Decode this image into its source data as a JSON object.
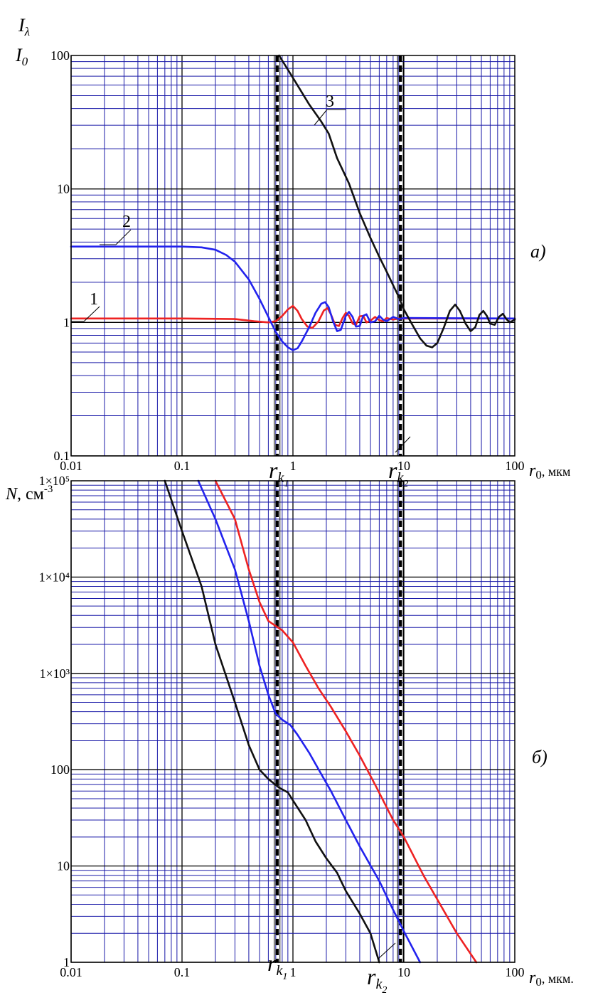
{
  "chart_data": [
    {
      "type": "line",
      "scale": "log-log",
      "panel_label": "а)",
      "ylabel": {
        "top": "I",
        "sub_top": "λ",
        "bottom": "I",
        "sub_bottom": "0"
      },
      "xlabel": {
        "main": "r",
        "sub": "0",
        "unit": ", мкм"
      },
      "xlim": [
        0.01,
        100
      ],
      "ylim": [
        0.1,
        100
      ],
      "x_ticks": [
        "0.01",
        "0.1",
        "1",
        "10",
        "100"
      ],
      "y_ticks": [
        "0.1",
        "1",
        "10",
        "100"
      ],
      "grid": true,
      "markers": [
        {
          "name": "r",
          "sub": "k",
          "subsub": "1",
          "x": 0.72
        },
        {
          "name": "r",
          "sub": "k",
          "subsub": "2",
          "x": 9.3
        }
      ],
      "series": [
        {
          "name": "1",
          "color": "#ee2222",
          "points": [
            [
              0.01,
              1.07
            ],
            [
              0.1,
              1.07
            ],
            [
              0.3,
              1.06
            ],
            [
              0.45,
              1.02
            ],
            [
              0.6,
              1.0
            ],
            [
              0.7,
              1.02
            ],
            [
              0.8,
              1.12
            ],
            [
              0.9,
              1.25
            ],
            [
              1.0,
              1.33
            ],
            [
              1.1,
              1.22
            ],
            [
              1.2,
              1.06
            ],
            [
              1.35,
              0.93
            ],
            [
              1.5,
              0.91
            ],
            [
              1.7,
              1.02
            ],
            [
              1.9,
              1.23
            ],
            [
              2.05,
              1.28
            ],
            [
              2.2,
              1.15
            ],
            [
              2.4,
              0.96
            ],
            [
              2.6,
              0.94
            ],
            [
              2.8,
              1.08
            ],
            [
              3.0,
              1.18
            ],
            [
              3.2,
              1.12
            ],
            [
              3.45,
              0.98
            ],
            [
              3.7,
              0.96
            ],
            [
              4.0,
              1.11
            ],
            [
              4.3,
              1.12
            ],
            [
              4.6,
              1.0
            ],
            [
              5.0,
              1.03
            ],
            [
              5.5,
              1.1
            ],
            [
              6.0,
              1.04
            ],
            [
              6.5,
              1.02
            ],
            [
              7.0,
              1.08
            ],
            [
              8.0,
              1.05
            ],
            [
              9.0,
              1.07
            ],
            [
              100,
              1.07
            ]
          ]
        },
        {
          "name": "2",
          "color": "#2222ee",
          "points": [
            [
              0.01,
              3.7
            ],
            [
              0.1,
              3.7
            ],
            [
              0.15,
              3.65
            ],
            [
              0.2,
              3.5
            ],
            [
              0.25,
              3.2
            ],
            [
              0.3,
              2.85
            ],
            [
              0.4,
              2.1
            ],
            [
              0.5,
              1.5
            ],
            [
              0.6,
              1.1
            ],
            [
              0.7,
              0.85
            ],
            [
              0.8,
              0.72
            ],
            [
              0.9,
              0.65
            ],
            [
              1.0,
              0.62
            ],
            [
              1.1,
              0.64
            ],
            [
              1.2,
              0.72
            ],
            [
              1.4,
              0.92
            ],
            [
              1.6,
              1.18
            ],
            [
              1.8,
              1.38
            ],
            [
              1.95,
              1.42
            ],
            [
              2.1,
              1.3
            ],
            [
              2.3,
              1.02
            ],
            [
              2.5,
              0.86
            ],
            [
              2.7,
              0.88
            ],
            [
              3.0,
              1.12
            ],
            [
              3.2,
              1.2
            ],
            [
              3.45,
              1.1
            ],
            [
              3.7,
              0.93
            ],
            [
              4.0,
              0.94
            ],
            [
              4.3,
              1.12
            ],
            [
              4.6,
              1.15
            ],
            [
              5.0,
              1.0
            ],
            [
              5.5,
              1.02
            ],
            [
              6.0,
              1.12
            ],
            [
              6.5,
              1.05
            ],
            [
              7.0,
              1.02
            ],
            [
              8.0,
              1.1
            ],
            [
              9.0,
              1.06
            ],
            [
              10,
              1.08
            ],
            [
              100,
              1.07
            ]
          ]
        },
        {
          "name": "3",
          "color": "#111111",
          "points": [
            [
              0.75,
              100
            ],
            [
              1.0,
              68
            ],
            [
              1.4,
              43
            ],
            [
              1.8,
              32
            ],
            [
              2.1,
              26
            ],
            [
              2.5,
              17
            ],
            [
              3.2,
              11
            ],
            [
              4.0,
              6.6
            ],
            [
              5.0,
              4.3
            ],
            [
              6.0,
              3.1
            ],
            [
              7.0,
              2.4
            ],
            [
              8.0,
              1.9
            ],
            [
              9.0,
              1.55
            ],
            [
              10,
              1.25
            ],
            [
              12,
              0.95
            ],
            [
              14,
              0.76
            ],
            [
              16,
              0.67
            ],
            [
              18,
              0.65
            ],
            [
              20,
              0.7
            ],
            [
              23,
              0.92
            ],
            [
              26,
              1.22
            ],
            [
              29,
              1.36
            ],
            [
              32,
              1.22
            ],
            [
              36,
              0.98
            ],
            [
              40,
              0.86
            ],
            [
              44,
              0.92
            ],
            [
              48,
              1.14
            ],
            [
              52,
              1.22
            ],
            [
              56,
              1.12
            ],
            [
              60,
              0.98
            ],
            [
              66,
              0.96
            ],
            [
              72,
              1.1
            ],
            [
              78,
              1.16
            ],
            [
              84,
              1.06
            ],
            [
              90,
              1.0
            ],
            [
              100,
              1.05
            ]
          ]
        }
      ]
    },
    {
      "type": "line",
      "scale": "log-log",
      "panel_label": "б)",
      "ylabel": {
        "main": "N",
        "unit": ", см",
        "sup": "-3"
      },
      "xlabel": {
        "main": "r",
        "sub": "0",
        "unit": ", мкм."
      },
      "xlim": [
        0.01,
        100
      ],
      "ylim": [
        1,
        100000
      ],
      "x_ticks": [
        "0.01",
        "0.1",
        "1",
        "10",
        "100"
      ],
      "y_ticks": [
        "1",
        "10",
        "100",
        "1×10³",
        "1×10⁴",
        "1×10⁵"
      ],
      "grid": true,
      "markers": [
        {
          "name": "r",
          "sub": "k",
          "subsub": "1",
          "x": 0.72
        },
        {
          "name": "r",
          "sub": "k",
          "subsub": "2",
          "x": 9.3
        }
      ],
      "series": [
        {
          "color": "#111111",
          "points": [
            [
              0.07,
              100000
            ],
            [
              0.1,
              30000
            ],
            [
              0.15,
              8000
            ],
            [
              0.2,
              2000
            ],
            [
              0.3,
              500
            ],
            [
              0.4,
              180
            ],
            [
              0.5,
              100
            ],
            [
              0.6,
              80
            ],
            [
              0.75,
              65
            ],
            [
              0.9,
              58
            ],
            [
              1.0,
              48
            ],
            [
              1.3,
              30
            ],
            [
              1.6,
              18
            ],
            [
              2.0,
              12
            ],
            [
              2.5,
              8.5
            ],
            [
              3.0,
              5.5
            ],
            [
              4.0,
              3.2
            ],
            [
              5.0,
              2.0
            ],
            [
              6.0,
              1.0
            ]
          ]
        },
        {
          "color": "#2222ee",
          "points": [
            [
              0.14,
              100000
            ],
            [
              0.2,
              40000
            ],
            [
              0.3,
              12000
            ],
            [
              0.4,
              3500
            ],
            [
              0.5,
              1200
            ],
            [
              0.6,
              600
            ],
            [
              0.7,
              380
            ],
            [
              0.8,
              330
            ],
            [
              0.95,
              290
            ],
            [
              1.1,
              230
            ],
            [
              1.4,
              150
            ],
            [
              1.8,
              90
            ],
            [
              2.2,
              60
            ],
            [
              3.0,
              30
            ],
            [
              4.0,
              16
            ],
            [
              6.0,
              7
            ],
            [
              8.0,
              3.5
            ],
            [
              10,
              2.1
            ],
            [
              14,
              1.0
            ]
          ]
        },
        {
          "color": "#ee2222",
          "points": [
            [
              0.2,
              100000
            ],
            [
              0.3,
              40000
            ],
            [
              0.4,
              12000
            ],
            [
              0.5,
              5500
            ],
            [
              0.6,
              3500
            ],
            [
              0.8,
              2800
            ],
            [
              1.0,
              2100
            ],
            [
              1.3,
              1200
            ],
            [
              1.7,
              700
            ],
            [
              2.2,
              450
            ],
            [
              3.0,
              250
            ],
            [
              4.0,
              140
            ],
            [
              5.5,
              70
            ],
            [
              8.0,
              30
            ],
            [
              10,
              20
            ],
            [
              15,
              8
            ],
            [
              20,
              4.5
            ],
            [
              30,
              2
            ],
            [
              45,
              1.0
            ]
          ]
        }
      ]
    }
  ]
}
